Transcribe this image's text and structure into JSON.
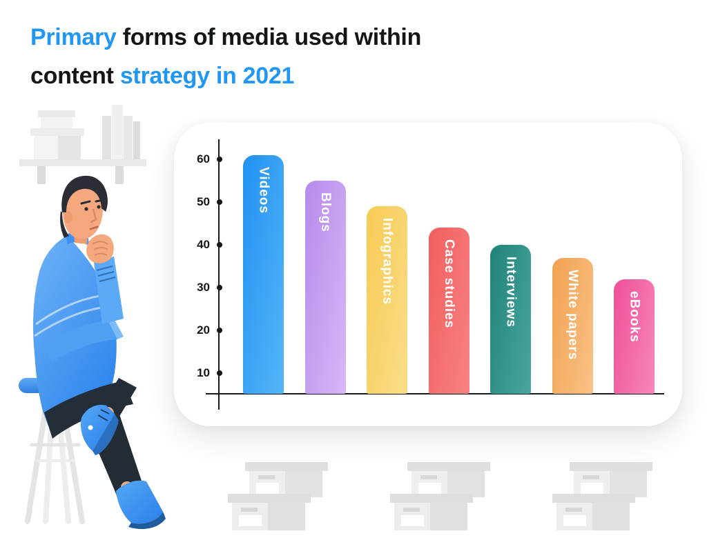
{
  "header": {
    "line1": [
      {
        "text": "Primary ",
        "color": "#2196F3"
      },
      {
        "text": "forms of media used within",
        "color": "#131619"
      }
    ],
    "line2": [
      {
        "text": "content ",
        "color": "#131619"
      },
      {
        "text": "strategy in 2021",
        "color": "#2196F3"
      }
    ]
  },
  "chart_data": {
    "type": "bar",
    "title": "Primary forms of media used within content strategy in 2021",
    "categories": [
      "Videos",
      "Blogs",
      "Infographics",
      "Case studies",
      "Interviews",
      "White papers",
      "eBooks"
    ],
    "values": [
      61,
      55,
      49,
      44,
      40,
      37,
      32
    ],
    "bar_gradients": [
      [
        "#2191F2",
        "#55B6F8"
      ],
      [
        "#B78AED",
        "#D7B8F6"
      ],
      [
        "#F7CB54",
        "#FADE8A"
      ],
      [
        "#F25E5E",
        "#F88384"
      ],
      [
        "#20837A",
        "#4AA69D"
      ],
      [
        "#F2A252",
        "#F9C286"
      ],
      [
        "#EF5098",
        "#F787BC"
      ]
    ],
    "bar_label_color": "#FFFFFF",
    "bar_label_position": "inside-top-vertical",
    "yticks": [
      10,
      20,
      30,
      40,
      50,
      60
    ],
    "ylim": [
      0,
      65
    ],
    "axis_color": "#17191F",
    "grid": false,
    "legend": "none"
  },
  "decor": {
    "shelf": "wall-shelf-with-boxes-and-books",
    "figure": "thinking-man-sitting-on-stool",
    "boxes": "three-stacks-of-storage-boxes",
    "accent_blue": "#2F86EC",
    "neutral_gray": "#E7E7E7"
  }
}
